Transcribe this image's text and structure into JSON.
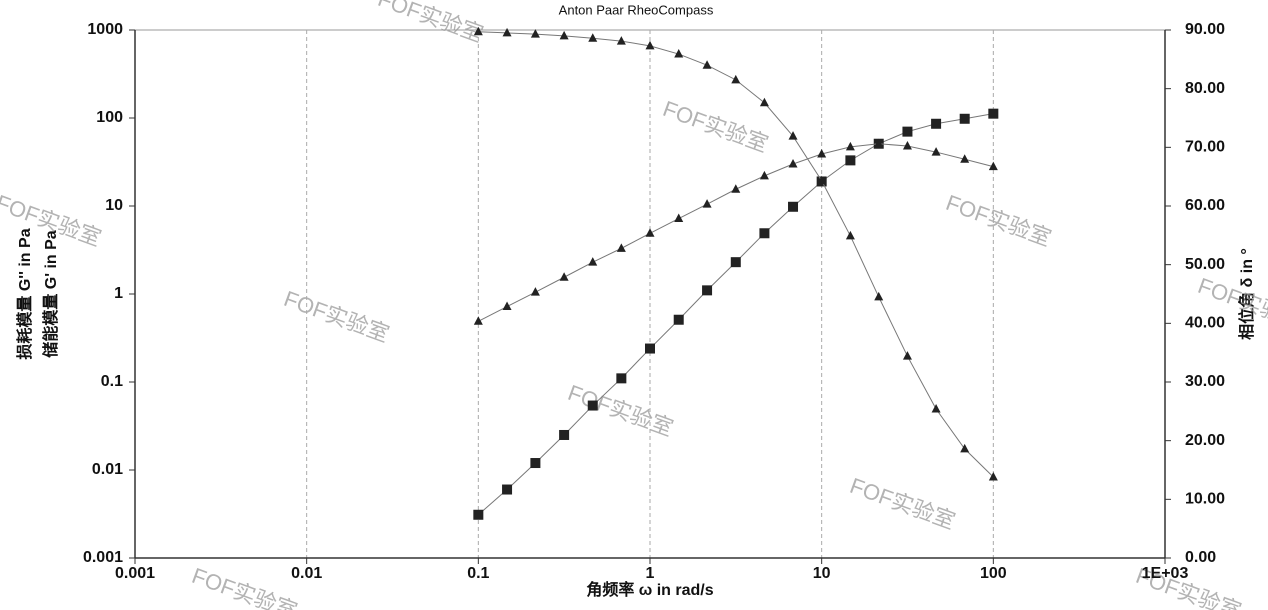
{
  "chart_data": {
    "type": "line",
    "title": "Anton Paar RheoCompass",
    "x_label": "角频率 ω in rad/s",
    "y_labels": [
      "损耗模量 G'' in Pa",
      "储能模量 G' in Pa"
    ],
    "y2_label": "相位角 δ in °",
    "watermarks": [
      "FOF实验室",
      "FOF实验室",
      "FOF实验室",
      "FOF实验室",
      "FOF实验室",
      "FOF实验室",
      "FOF实验室",
      "FOF实验室",
      "FOF实验室",
      "FOF实验室"
    ],
    "x": [
      0.1,
      0.147,
      0.215,
      0.316,
      0.464,
      0.681,
      1,
      1.47,
      2.15,
      3.16,
      4.64,
      6.81,
      10,
      14.7,
      21.5,
      31.6,
      46.4,
      68.1,
      100
    ],
    "xlog": true,
    "ylog": true,
    "xlim": [
      0.001,
      1000
    ],
    "xticks": [
      0.001,
      0.01,
      0.1,
      1,
      10,
      100,
      {
        "value": 1000,
        "label": "1E+03"
      }
    ],
    "ylim": [
      0.001,
      1000
    ],
    "yticks": [
      0.001,
      0.01,
      0.1,
      1,
      10,
      100,
      1000
    ],
    "y2lim": [
      0,
      90
    ],
    "y2ticks": [
      {
        "value": 0,
        "label": "0.00"
      },
      {
        "value": 10,
        "label": "10.00"
      },
      {
        "value": 20,
        "label": "20.00"
      },
      {
        "value": 30,
        "label": "30.00"
      },
      {
        "value": 40,
        "label": "40.00"
      },
      {
        "value": 50,
        "label": "50.00"
      },
      {
        "value": 60,
        "label": "60.00"
      },
      {
        "value": 70,
        "label": "70.00"
      },
      {
        "value": 80,
        "label": "80.00"
      },
      {
        "value": 90,
        "label": "90.00"
      }
    ],
    "grid": true,
    "series": [
      {
        "name": "G'",
        "marker": "square",
        "color": "#222222",
        "values": [
          0.0031,
          0.006,
          0.012,
          0.025,
          0.054,
          0.11,
          0.24,
          0.51,
          1.1,
          2.3,
          4.9,
          9.8,
          19,
          33,
          51,
          70,
          86,
          98,
          112
        ]
      },
      {
        "name": "G''",
        "marker": "triangle",
        "color": "#222222",
        "values": [
          0.49,
          0.72,
          1.05,
          1.55,
          2.3,
          3.3,
          4.9,
          7.2,
          10.5,
          15.5,
          22,
          30,
          39,
          47,
          51,
          48,
          41,
          34,
          28
        ]
      },
      {
        "name": "δ",
        "marker": "triangle",
        "color": "#222222",
        "axis": "y2",
        "values": [
          89.7,
          89.5,
          89.3,
          89.0,
          88.6,
          88.1,
          87.3,
          85.9,
          84.0,
          81.5,
          77.6,
          71.9,
          64.3,
          54.9,
          44.5,
          34.4,
          25.4,
          18.6,
          13.8
        ]
      }
    ]
  }
}
